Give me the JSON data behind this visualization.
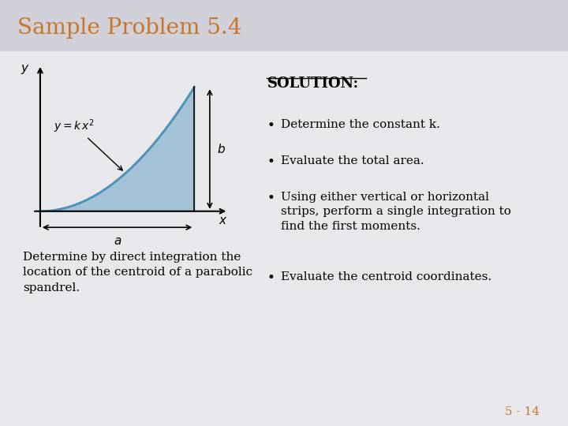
{
  "title": "Sample Problem 5.4",
  "title_color": "#c8762b",
  "title_bg_color": "#d0d0d8",
  "slide_bg_color": "#e8e8ec",
  "solution_label": "SOLUTION:",
  "bullet1": "Determine the constant k.",
  "bullet2": "Evaluate the total area.",
  "bullet3": "Using either vertical or horizontal\nstrips, perform a single integration to\nfind the first moments.",
  "bullet4": "Evaluate the centroid coordinates.",
  "body_text": "Determine by direct integration the\nlocation of the centroid of a parabolic\nspandrel.",
  "page_number": "5 - 14",
  "page_number_color": "#c8762b",
  "curve_color": "#4a90b8",
  "fill_color": "#a8c8d8",
  "fill_alpha": 0.6,
  "axes_color": "#000000",
  "label_color": "#000000"
}
